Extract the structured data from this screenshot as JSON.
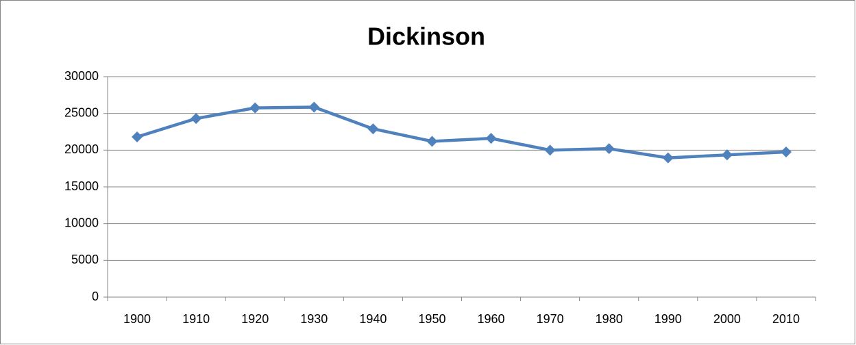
{
  "chart_data": {
    "type": "line",
    "title": "Dickinson",
    "categories": [
      "1900",
      "1910",
      "1920",
      "1930",
      "1940",
      "1950",
      "1960",
      "1970",
      "1980",
      "1990",
      "2000",
      "2010"
    ],
    "series": [
      {
        "name": "Dickinson",
        "color": "#4f81bd",
        "values": [
          21800,
          24300,
          25750,
          25850,
          22900,
          21200,
          21600,
          20000,
          20200,
          18950,
          19350,
          19750
        ]
      }
    ],
    "ylim": [
      0,
      30000
    ],
    "yticks": [
      0,
      5000,
      10000,
      15000,
      20000,
      25000,
      30000
    ],
    "grid": true
  }
}
